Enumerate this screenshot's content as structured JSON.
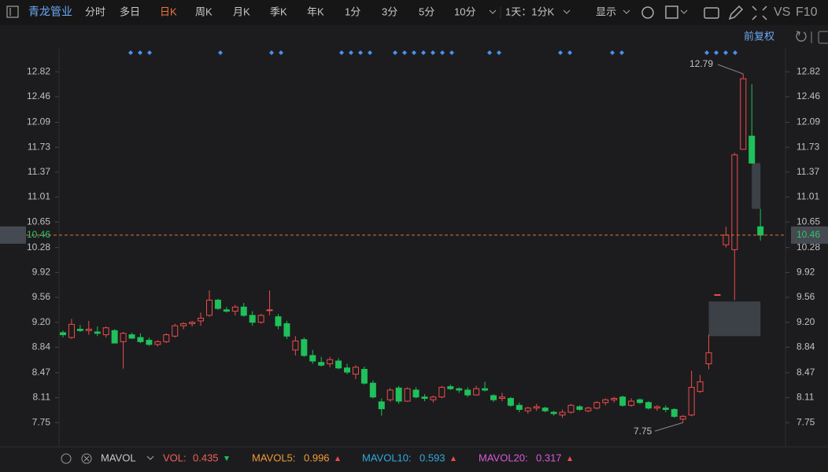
{
  "toolbar": {
    "stock": "青龙管业",
    "periods": [
      "分时",
      "多日",
      "日K",
      "周K",
      "月K",
      "季K",
      "年K",
      "1分",
      "3分",
      "5分",
      "10分"
    ],
    "active_period": "日K",
    "interval": "1天：1分K",
    "display": "显示",
    "vs": "VS",
    "f10": "F10",
    "adjust": "前复权"
  },
  "chart_data": {
    "type": "candlestick",
    "ylim": [
      7.4,
      13.46
    ],
    "yticks": [
      12.82,
      12.46,
      12.09,
      11.73,
      11.37,
      11.01,
      10.65,
      10.28,
      9.92,
      9.56,
      {
        "value": 9.2,
        "label": "9.20"
      },
      8.84,
      8.47,
      8.11,
      7.75
    ],
    "open": [
      9.05,
      8.98,
      9.1,
      9.08,
      9.06,
      9.02,
      9.08,
      8.92,
      9.02,
      8.98,
      8.94,
      8.88,
      8.92,
      9.0,
      9.15,
      9.18,
      9.22,
      9.3,
      9.52,
      9.38,
      9.36,
      9.42,
      9.3,
      9.2,
      9.38,
      9.28,
      9.18,
      8.8,
      8.95,
      8.72,
      8.62,
      8.6,
      8.64,
      8.54,
      8.45,
      8.52,
      8.32,
      8.05,
      8.08,
      8.25,
      8.06,
      8.22,
      8.12,
      8.08,
      8.12,
      8.27,
      8.24,
      8.22,
      8.15,
      8.24,
      8.14,
      8.1,
      8.1,
      8.0,
      7.92,
      7.96,
      7.96,
      7.9,
      7.86,
      7.9,
      7.98,
      7.92,
      7.96,
      8.04,
      8.08,
      8.12,
      8.0,
      8.08,
      8.04,
      7.96,
      7.96,
      7.94,
      7.8,
      7.86,
      8.2,
      8.6,
      9.6,
      10.32,
      10.25,
      11.7,
      11.89,
      10.58
    ],
    "high": [
      9.08,
      9.25,
      9.16,
      9.22,
      9.14,
      9.14,
      9.1,
      9.06,
      9.05,
      9.04,
      8.98,
      8.94,
      9.04,
      9.18,
      9.2,
      9.22,
      9.34,
      9.66,
      9.54,
      9.42,
      9.45,
      9.48,
      9.36,
      9.32,
      9.66,
      9.32,
      9.22,
      9.0,
      8.98,
      8.8,
      8.7,
      8.7,
      8.68,
      8.6,
      8.58,
      8.56,
      8.36,
      8.1,
      8.25,
      8.28,
      8.26,
      8.26,
      8.16,
      8.14,
      8.28,
      8.3,
      8.26,
      8.26,
      8.28,
      8.34,
      8.16,
      8.18,
      8.12,
      8.04,
      7.98,
      8.02,
      7.98,
      7.92,
      7.94,
      8.02,
      8.0,
      7.98,
      8.06,
      8.1,
      8.12,
      8.14,
      8.1,
      8.1,
      8.06,
      8.0,
      8.0,
      7.96,
      7.86,
      8.5,
      8.44,
      9.02,
      9.6,
      10.58,
      11.65,
      12.79,
      12.64,
      10.84
    ],
    "low": [
      8.98,
      8.96,
      9.06,
      9.02,
      9.0,
      8.98,
      8.92,
      8.53,
      8.96,
      8.9,
      8.86,
      8.85,
      8.9,
      8.98,
      9.1,
      9.14,
      9.15,
      9.28,
      9.38,
      9.34,
      9.3,
      9.28,
      9.15,
      9.18,
      9.3,
      9.1,
      8.96,
      8.72,
      8.7,
      8.6,
      8.56,
      8.55,
      8.52,
      8.45,
      8.38,
      8.3,
      8.1,
      7.85,
      8.05,
      8.02,
      8.05,
      8.1,
      8.06,
      8.04,
      8.1,
      8.22,
      8.18,
      8.12,
      8.14,
      8.2,
      8.05,
      8.06,
      7.98,
      7.9,
      7.88,
      7.92,
      7.9,
      7.85,
      7.82,
      7.88,
      7.92,
      7.9,
      7.94,
      8.0,
      8.04,
      7.98,
      7.98,
      8.02,
      7.94,
      7.92,
      7.9,
      7.82,
      7.75,
      7.84,
      8.18,
      8.52,
      9.6,
      10.28,
      9.52,
      11.7,
      11.5,
      10.38
    ],
    "close": [
      9.02,
      9.17,
      9.08,
      9.1,
      9.04,
      9.12,
      8.9,
      9.04,
      8.97,
      8.92,
      8.88,
      8.92,
      9.02,
      9.15,
      9.18,
      9.2,
      9.26,
      9.52,
      9.4,
      9.36,
      9.42,
      9.3,
      9.2,
      9.3,
      9.38,
      9.15,
      9.0,
      8.93,
      8.72,
      8.64,
      8.58,
      8.66,
      8.54,
      8.48,
      8.55,
      8.32,
      8.12,
      7.95,
      8.22,
      8.06,
      8.24,
      8.12,
      8.1,
      8.12,
      8.26,
      8.24,
      8.22,
      8.15,
      8.24,
      8.22,
      8.08,
      8.12,
      8.0,
      7.94,
      7.96,
      7.98,
      7.92,
      7.88,
      7.9,
      8.0,
      7.94,
      7.96,
      8.04,
      8.08,
      8.1,
      8.0,
      8.06,
      8.04,
      7.96,
      7.98,
      7.94,
      7.84,
      7.84,
      8.26,
      8.34,
      8.76,
      9.6,
      10.46,
      11.62,
      12.72,
      11.5,
      10.46
    ],
    "gaps": [
      {
        "low": 9.0,
        "high": 9.5
      },
      {
        "low": 10.84,
        "high": 11.5
      }
    ],
    "up_color": "#f04b4b",
    "down_color": "#1fc15a",
    "last_price": 10.46,
    "high_mark": 12.79,
    "low_mark": 7.75
  },
  "indicator": {
    "name": "MAVOL",
    "items": [
      {
        "label": "VOL:",
        "value": 0.435,
        "color": "#f0605a",
        "trend": "down"
      },
      {
        "label": "MAVOL5:",
        "value": 0.996,
        "color": "#f39a35",
        "trend": "up"
      },
      {
        "label": "MAVOL10:",
        "value": 0.593,
        "color": "#2fa8e0",
        "trend": "up"
      },
      {
        "label": "MAVOL20:",
        "value": 0.317,
        "color": "#d85ad8",
        "trend": "up"
      }
    ]
  }
}
